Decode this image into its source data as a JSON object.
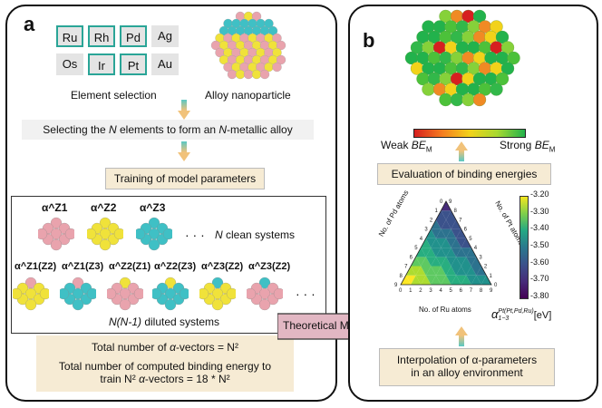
{
  "panel_a": {
    "label": "a",
    "elements": [
      {
        "symbol": "Ru",
        "selected": true
      },
      {
        "symbol": "Rh",
        "selected": true
      },
      {
        "symbol": "Pd",
        "selected": true
      },
      {
        "symbol": "Ag",
        "selected": false
      },
      {
        "symbol": "Os",
        "selected": false
      },
      {
        "symbol": "Ir",
        "selected": true
      },
      {
        "symbol": "Pt",
        "selected": true
      },
      {
        "symbol": "Au",
        "selected": false
      }
    ],
    "element_selection": "Element selection",
    "alloy_nanoparticle": "Alloy nanoparticle",
    "selecting_pre": "Selecting the ",
    "selecting_n": "N",
    "selecting_mid": " elements to form an ",
    "selecting_n2": "N",
    "selecting_post": "-metallic alloy",
    "training": "Training of model parameters",
    "clean_labels": [
      "α^Z1",
      "α^Z2",
      "α^Z3"
    ],
    "clean_dots": "· · ·",
    "clean_text_n": "N",
    "clean_text": " clean systems",
    "diluted_labels": [
      "α^Z1(Z2)",
      "α^Z1(Z3)",
      "α^Z2(Z1)",
      "α^Z2(Z3)",
      "α^Z3(Z2)",
      "α^Z3(Z2)"
    ],
    "diluted_dots": "· · ·",
    "diluted_text_n": "N(N-1)",
    "diluted_text": " diluted systems",
    "summary1_pre": "Total number of ",
    "summary1_alpha": "α",
    "summary1_post": "-vectors = N²",
    "summary2_line1": "Total number of computed binding energy to",
    "summary2_line2_pre": "train N² ",
    "summary2_alpha": "α",
    "summary2_line2_post": "-vectors = 18 * N²"
  },
  "arrow_label": "Theoretical Model",
  "panel_b": {
    "label": "b",
    "weak_pre": "Weak ",
    "weak_be": "BE",
    "weak_sub": "M",
    "strong_pre": "Strong ",
    "strong_be": "BE",
    "strong_sub": "M",
    "evaluation": "Evaluation of binding energies",
    "axis_pd": "No. of Pd atoms",
    "axis_pt": "No. of Pt atoms",
    "axis_ru": "No. of Ru atoms",
    "colorbar_ticks": [
      "-3.20",
      "-3.30",
      "-3.40",
      "-3.50",
      "-3.60",
      "-3.70",
      "-3.80"
    ],
    "colorbar_label_alpha": "α",
    "colorbar_label_sup": "Pt(Pt,Pd,Ru)",
    "colorbar_label_sub": "1−3",
    "colorbar_label_unit": "[eV]",
    "interp_line1": "Interpolation of α-parameters",
    "interp_line2": "in an alloy environment"
  },
  "colors": {
    "teal": "#2aa597",
    "pink": "#e9a3ad",
    "yellow": "#f0e23a",
    "cyan": "#3fc0c5",
    "box_fill": "#f6ebd4",
    "arrow_fill": "#e2b7c3"
  }
}
